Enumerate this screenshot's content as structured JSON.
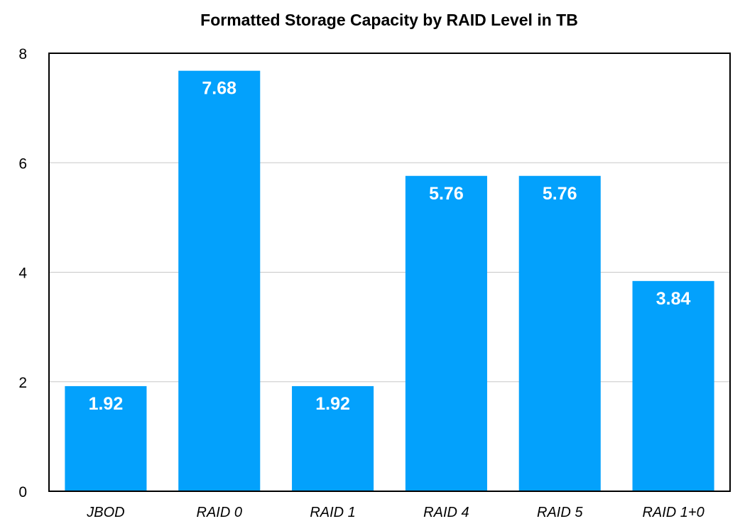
{
  "chart_data": {
    "type": "bar",
    "title": "Formatted Storage Capacity by RAID Level in TB",
    "xlabel": "",
    "ylabel": "",
    "categories": [
      "JBOD",
      "RAID 0",
      "RAID 1",
      "RAID 4",
      "RAID 5",
      "RAID 1+0"
    ],
    "values": [
      1.92,
      7.68,
      1.92,
      5.76,
      5.76,
      3.84
    ],
    "data_labels": [
      "1.92",
      "7.68",
      "1.92",
      "5.76",
      "5.76",
      "3.84"
    ],
    "ylim": [
      0,
      8
    ],
    "y_ticks": [
      0,
      2,
      4,
      6,
      8
    ],
    "grid": true,
    "legend": "none",
    "bar_color": "#03a1fc"
  }
}
